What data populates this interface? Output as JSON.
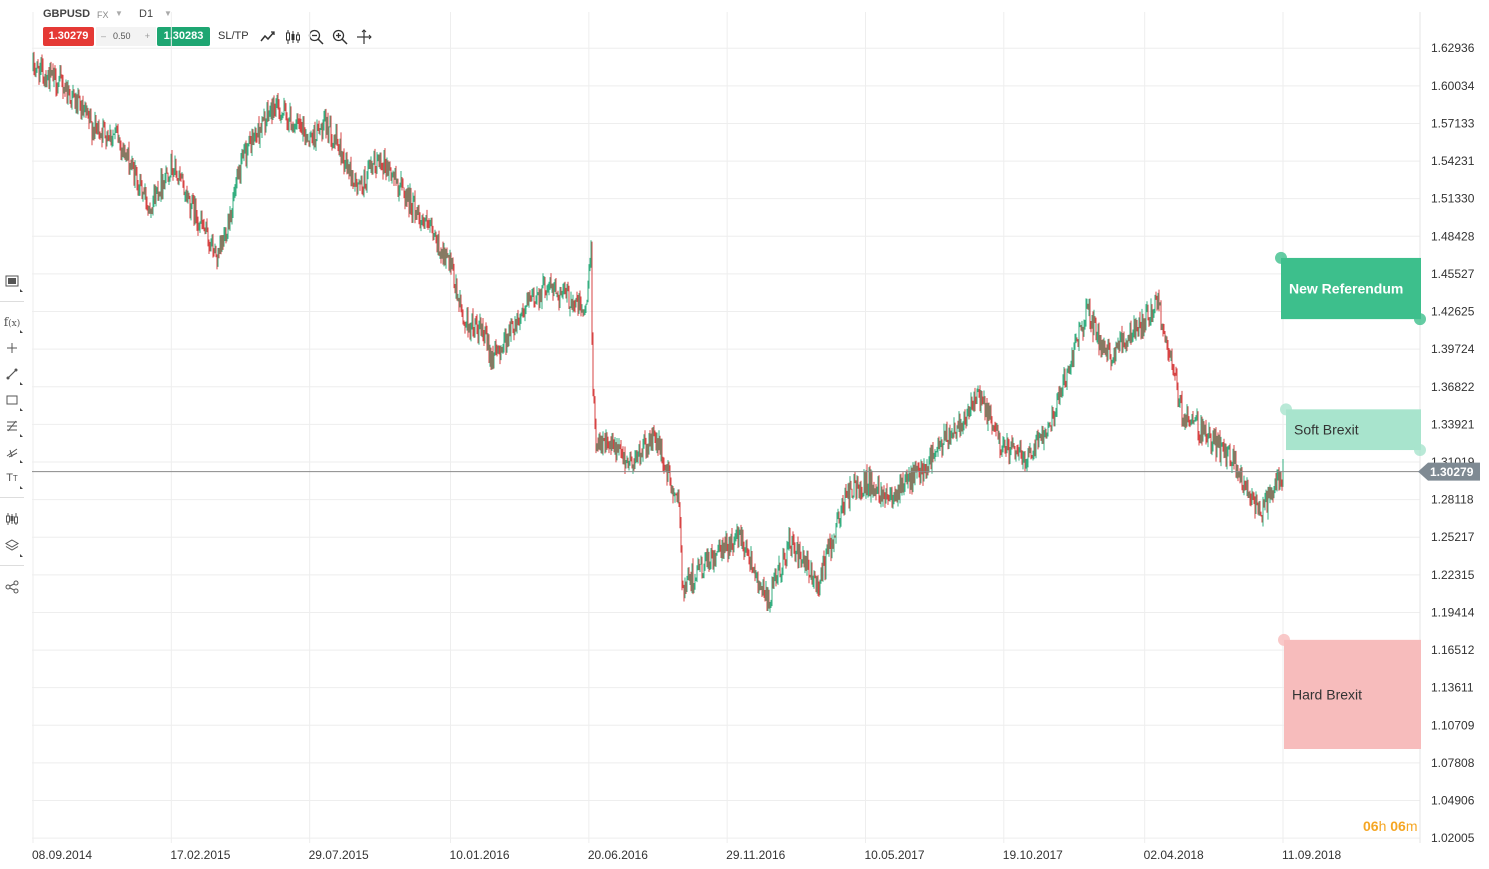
{
  "toolbar": {
    "symbol": "GBPUSD",
    "market": "FX",
    "timeframe": "D1",
    "sell_price": "1.30279",
    "spread": "0.50",
    "buy_price": "1.30283",
    "sltp_label": "SL/TP",
    "sell_color": "#e53935",
    "buy_color": "#1ea672",
    "icons": [
      "line-chart-icon",
      "candle-type-icon",
      "zoom-out-icon",
      "zoom-in-icon",
      "crosshair-icon"
    ]
  },
  "left_tools": [
    "window-icon",
    "function-icon",
    "crosshair-plus-icon",
    "trendline-icon",
    "rectangle-icon",
    "fibonacci-icon",
    "pitchfork-icon",
    "text-icon",
    "indicators-icon",
    "layers-icon",
    "share-icon"
  ],
  "countdown": {
    "hours": "06",
    "h_unit": "h",
    "minutes": "06",
    "m_unit": "m"
  },
  "chart_data": {
    "type": "candlestick",
    "symbol": "GBPUSD",
    "timeframe": "D1",
    "x_ticks": [
      "08.09.2014",
      "17.02.2015",
      "29.07.2015",
      "10.01.2016",
      "20.06.2016",
      "29.11.2016",
      "10.05.2017",
      "19.10.2017",
      "02.04.2018",
      "11.09.2018"
    ],
    "y_ticks": [
      "1.62936",
      "1.60034",
      "1.57133",
      "1.54231",
      "1.51330",
      "1.48428",
      "1.45527",
      "1.42625",
      "1.39724",
      "1.36822",
      "1.33921",
      "1.31019",
      "1.28118",
      "1.25217",
      "1.22315",
      "1.19414",
      "1.16512",
      "1.13611",
      "1.10709",
      "1.07808",
      "1.04906",
      "1.02005"
    ],
    "ylim": [
      1.0163,
      1.6573
    ],
    "grid": true,
    "current_price": 1.30279,
    "current_price_label": "1.30279",
    "up_color": "#1ea672",
    "down_color": "#d32f2f",
    "approx_closes": [
      [
        "08.09.2014",
        1.615
      ],
      [
        "15.10.2014",
        1.6
      ],
      [
        "17.11.2014",
        1.568
      ],
      [
        "15.12.2014",
        1.562
      ],
      [
        "22.01.2015",
        1.508
      ],
      [
        "17.02.2015",
        1.54
      ],
      [
        "10.03.2015",
        1.512
      ],
      [
        "13.04.2015",
        1.466
      ],
      [
        "15.05.2015",
        1.55
      ],
      [
        "18.06.2015",
        1.585
      ],
      [
        "29.07.2015",
        1.56
      ],
      [
        "20.08.2015",
        1.57
      ],
      [
        "24.09.2015",
        1.52
      ],
      [
        "20.10.2015",
        1.545
      ],
      [
        "20.11.2015",
        1.515
      ],
      [
        "20.12.2015",
        1.485
      ],
      [
        "10.01.2016",
        1.46
      ],
      [
        "25.01.2016",
        1.42
      ],
      [
        "15.02.2016",
        1.41
      ],
      [
        "01.03.2016",
        1.39
      ],
      [
        "01.04.2016",
        1.425
      ],
      [
        "01.05.2016",
        1.447
      ],
      [
        "01.06.2016",
        1.435
      ],
      [
        "17.06.2016",
        1.425
      ],
      [
        "23.06.2016",
        1.488
      ],
      [
        "24.06.2016",
        1.37
      ],
      [
        "28.06.2016",
        1.33
      ],
      [
        "08.08.2016",
        1.31
      ],
      [
        "06.09.2016",
        1.33
      ],
      [
        "05.10.2016",
        1.27
      ],
      [
        "07.10.2016",
        1.215
      ],
      [
        "29.11.2016",
        1.245
      ],
      [
        "15.12.2016",
        1.255
      ],
      [
        "16.01.2017",
        1.2
      ],
      [
        "10.02.2017",
        1.248
      ],
      [
        "15.03.2017",
        1.215
      ],
      [
        "18.04.2017",
        1.285
      ],
      [
        "10.05.2017",
        1.295
      ],
      [
        "05.06.2017",
        1.285
      ],
      [
        "10.07.2017",
        1.3
      ],
      [
        "20.09.2017",
        1.36
      ],
      [
        "19.10.2017",
        1.32
      ],
      [
        "15.11.2017",
        1.315
      ],
      [
        "15.12.2017",
        1.345
      ],
      [
        "25.01.2018",
        1.428
      ],
      [
        "15.02.2018",
        1.39
      ],
      [
        "02.04.2018",
        1.42
      ],
      [
        "17.04.2018",
        1.435
      ],
      [
        "15.05.2018",
        1.35
      ],
      [
        "15.06.2018",
        1.33
      ],
      [
        "15.07.2018",
        1.31
      ],
      [
        "15.08.2018",
        1.27
      ],
      [
        "11.09.2018",
        1.30279
      ]
    ],
    "zones": [
      {
        "label": "New Referendum",
        "top": 1.4676,
        "bottom": 1.4204,
        "color": "#3dbf8c",
        "text_color": "#ffffff"
      },
      {
        "label": "Soft Brexit",
        "top": 1.3508,
        "bottom": 1.3194,
        "color": "#a8e4cd",
        "text_color": "#333333"
      },
      {
        "label": "Hard Brexit",
        "top": 1.173,
        "bottom": 1.0888,
        "color": "#f7bcbc",
        "text_color": "#333333"
      }
    ]
  }
}
